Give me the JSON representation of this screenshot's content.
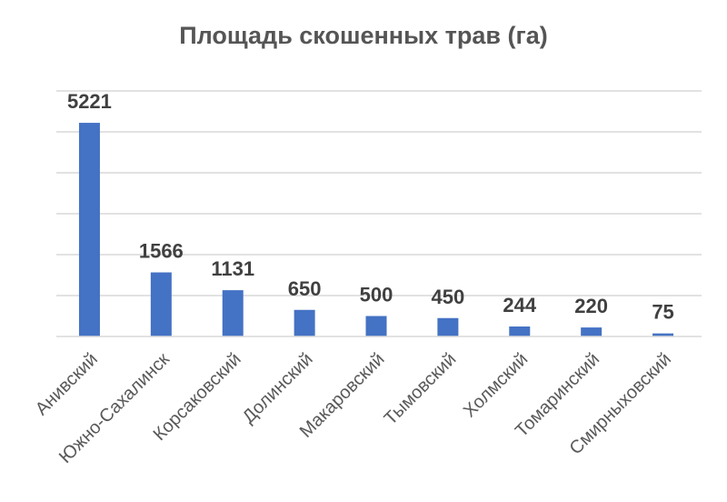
{
  "chart_data": {
    "type": "bar",
    "title": "Площадь скошенных трав (га)",
    "categories": [
      "Анивский",
      "Южно-Сахалинск",
      "Корсаковский",
      "Долинский",
      "Макаровский",
      "Тымовский",
      "Холмский",
      "Томаринский",
      "Смирныховский"
    ],
    "values": [
      5221,
      1566,
      1131,
      650,
      500,
      450,
      244,
      220,
      75
    ],
    "ylim": [
      0,
      6000
    ],
    "grid": true,
    "bar_color": "#4472c4",
    "data_labels": true
  }
}
